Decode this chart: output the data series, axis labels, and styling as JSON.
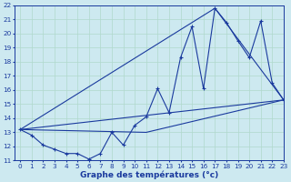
{
  "xlabel": "Graphe des températures (°c)",
  "bg_color": "#cde9f0",
  "grid_color": "#b0d8cc",
  "line_color": "#1a3a9e",
  "xlim": [
    -0.5,
    23
  ],
  "ylim": [
    11,
    22
  ],
  "xticks": [
    0,
    1,
    2,
    3,
    4,
    5,
    6,
    7,
    8,
    9,
    10,
    11,
    12,
    13,
    14,
    15,
    16,
    17,
    18,
    19,
    20,
    21,
    22,
    23
  ],
  "yticks": [
    11,
    12,
    13,
    14,
    15,
    16,
    17,
    18,
    19,
    20,
    21,
    22
  ],
  "line1_x": [
    0,
    1,
    2,
    3,
    4,
    5,
    6,
    7,
    8,
    9,
    10,
    11,
    12,
    13,
    14,
    15,
    16,
    17,
    18,
    19,
    20,
    21,
    22,
    23
  ],
  "line1_y": [
    13.2,
    12.8,
    12.1,
    11.8,
    11.5,
    11.5,
    11.1,
    11.5,
    13.0,
    12.1,
    13.5,
    14.1,
    16.1,
    14.4,
    18.3,
    20.5,
    16.1,
    21.8,
    20.8,
    19.5,
    18.3,
    20.9,
    16.5,
    15.3
  ],
  "line2_x": [
    0,
    23
  ],
  "line2_y": [
    13.2,
    15.3
  ],
  "line3_x": [
    0,
    11,
    23
  ],
  "line3_y": [
    13.2,
    13.0,
    15.3
  ],
  "line4_x": [
    0,
    17,
    23
  ],
  "line4_y": [
    13.2,
    21.8,
    15.3
  ]
}
